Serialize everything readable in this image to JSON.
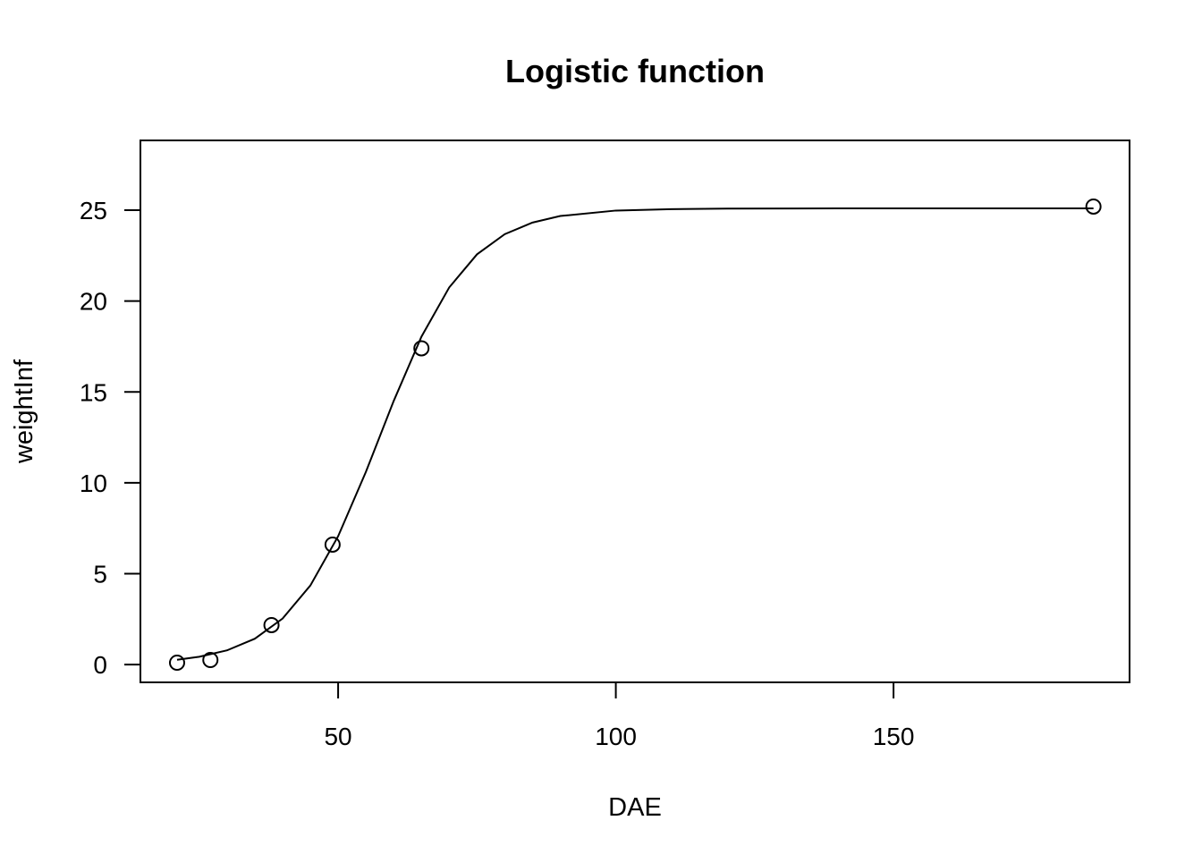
{
  "chart_data": {
    "type": "scatter",
    "title": "Logistic function",
    "x_label": "DAE",
    "y_label": "weightInf",
    "series": [
      {
        "mode": "markers",
        "color": "#000000",
        "x": [
          21,
          27,
          38,
          49,
          65,
          186
        ],
        "values": [
          0.1,
          0.25,
          2.17,
          6.6,
          17.4,
          25.2
        ]
      },
      {
        "mode": "line",
        "color": "#000000",
        "x": [
          21,
          25,
          30,
          35,
          40,
          45,
          50,
          55,
          60,
          65,
          70,
          75,
          80,
          85,
          90,
          100,
          110,
          120,
          140,
          160,
          186
        ],
        "values": [
          0.26,
          0.43,
          0.78,
          1.42,
          2.53,
          4.35,
          7.06,
          10.6,
          14.5,
          18.04,
          20.75,
          22.57,
          23.68,
          24.32,
          24.68,
          24.98,
          25.06,
          25.09,
          25.1,
          25.1,
          25.1
        ]
      }
    ],
    "xlim": [
      14.4,
      192.5
    ],
    "ylim": [
      -0.98,
      28.84
    ],
    "xticks": [
      50,
      100,
      150
    ],
    "yticks": [
      0,
      5,
      10,
      15,
      20,
      25
    ]
  }
}
